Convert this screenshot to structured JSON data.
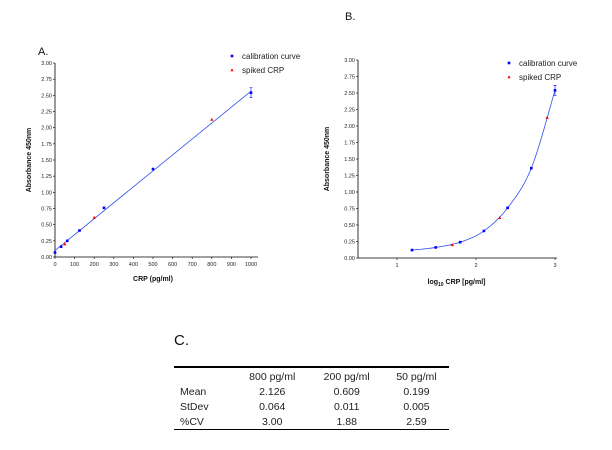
{
  "chart_data": [
    {
      "panel_label": "A.",
      "type": "scatter",
      "xlabel": "CRP (pg/ml)",
      "ylabel": "Absorbance 450nm",
      "xlim": [
        0,
        1000
      ],
      "ylim": [
        0,
        3
      ],
      "xticks": [
        0,
        100,
        200,
        300,
        400,
        500,
        600,
        700,
        800,
        900,
        1000
      ],
      "yticks": [
        "0.00",
        "0.25",
        "0.50",
        "0.75",
        "1.00",
        "1.25",
        "1.50",
        "1.75",
        "2.00",
        "2.25",
        "2.50",
        "2.75",
        "3.00"
      ],
      "legend_position": "top-right",
      "fit": "linear",
      "series": [
        {
          "name": "calibration curve",
          "color": "#0000ff",
          "marker": "square",
          "x": [
            0,
            31.25,
            62.5,
            125,
            250,
            500,
            1000
          ],
          "y": [
            0.07,
            0.16,
            0.25,
            0.41,
            0.76,
            1.36,
            2.54
          ]
        },
        {
          "name": "spiked CRP",
          "color": "#ff0000",
          "marker": "triangle",
          "x": [
            50,
            200,
            800
          ],
          "y": [
            0.199,
            0.609,
            2.126
          ]
        }
      ]
    },
    {
      "panel_label": "B.",
      "type": "scatter",
      "xlabel_pre": "log",
      "xlabel_sub": "10",
      "xlabel_post": " CRP [pg/ml]",
      "ylabel": "Absorbance 450nm",
      "xlim": [
        0.5,
        3.05
      ],
      "ylim": [
        0,
        3
      ],
      "xticks": [
        1,
        2,
        3
      ],
      "yticks": [
        "0.00",
        "0.25",
        "0.50",
        "0.75",
        "1.00",
        "1.25",
        "1.50",
        "1.75",
        "2.00",
        "2.25",
        "2.50",
        "2.75",
        "3.00"
      ],
      "legend_position": "top-right",
      "fit": "curve",
      "series": [
        {
          "name": "calibration curve",
          "color": "#0000ff",
          "marker": "square",
          "x": [
            1.19,
            1.49,
            1.8,
            2.1,
            2.4,
            2.7,
            3.0
          ],
          "y": [
            0.12,
            0.16,
            0.24,
            0.41,
            0.76,
            1.36,
            2.54
          ]
        },
        {
          "name": "spiked CRP",
          "color": "#ff0000",
          "marker": "triangle",
          "x": [
            1.7,
            2.3,
            2.9
          ],
          "y": [
            0.199,
            0.609,
            2.126
          ]
        }
      ]
    }
  ],
  "table": {
    "panel_label": "C.",
    "columns": [
      "",
      "800 pg/ml",
      "200 pg/ml",
      "50 pg/ml"
    ],
    "rows": [
      [
        "Mean",
        "2.126",
        "0.609",
        "0.199"
      ],
      [
        "StDev",
        "0.064",
        "0.011",
        "0.005"
      ],
      [
        "%CV",
        "3.00",
        "1.88",
        "2.59"
      ]
    ]
  }
}
